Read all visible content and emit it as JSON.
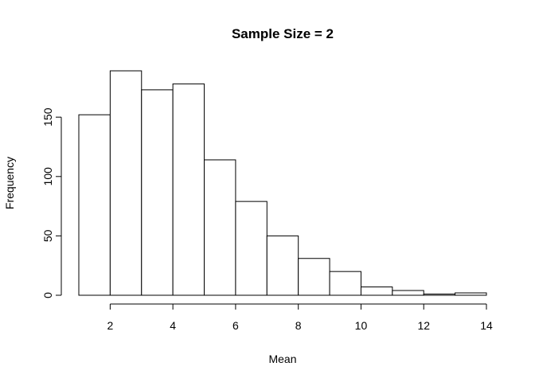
{
  "chart_data": {
    "type": "bar",
    "subtype": "histogram",
    "title": "Sample Size =  2",
    "xlabel": "Mean",
    "ylabel": "Frequency",
    "bins": [
      {
        "from": 1,
        "to": 2,
        "count": 152
      },
      {
        "from": 2,
        "to": 3,
        "count": 189
      },
      {
        "from": 3,
        "to": 4,
        "count": 173
      },
      {
        "from": 4,
        "to": 5,
        "count": 178
      },
      {
        "from": 5,
        "to": 6,
        "count": 114
      },
      {
        "from": 6,
        "to": 7,
        "count": 79
      },
      {
        "from": 7,
        "to": 8,
        "count": 50
      },
      {
        "from": 8,
        "to": 9,
        "count": 31
      },
      {
        "from": 9,
        "to": 10,
        "count": 20
      },
      {
        "from": 10,
        "to": 11,
        "count": 7
      },
      {
        "from": 11,
        "to": 12,
        "count": 4
      },
      {
        "from": 12,
        "to": 13,
        "count": 1
      },
      {
        "from": 13,
        "to": 14,
        "count": 2
      }
    ],
    "x_ticks": [
      2,
      4,
      6,
      8,
      10,
      12,
      14
    ],
    "y_ticks": [
      0,
      50,
      100,
      150
    ],
    "xlim": [
      1,
      14
    ],
    "ylim": [
      0,
      189
    ],
    "grid": false,
    "bar_fill": "#ffffff",
    "bar_stroke": "#000000"
  }
}
